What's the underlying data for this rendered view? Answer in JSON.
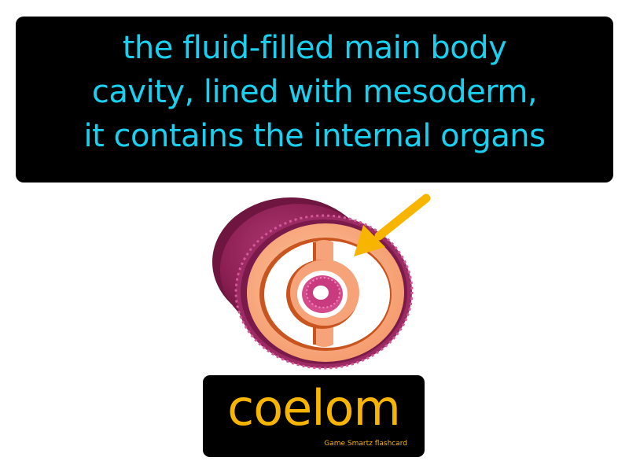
{
  "definition": {
    "lines": [
      "the fluid-filled main body",
      "cavity, lined with mesoderm,",
      "it contains the internal organs"
    ]
  },
  "term": {
    "word": "coelom"
  },
  "brand": {
    "label": "Game Smartz flashcard"
  },
  "illustration": {
    "subject": "coelom cross-section icon",
    "pointer": "arrow-icon"
  },
  "colors": {
    "background": "#ffffff",
    "box": "#000000",
    "definition_text": "#1ad0f0",
    "term_text": "#f7b500",
    "outer_tissue": "#8a1e52",
    "mesoderm": "#f6a37a",
    "mesoderm_dark": "#c8551f",
    "arrow": "#f7b500"
  }
}
